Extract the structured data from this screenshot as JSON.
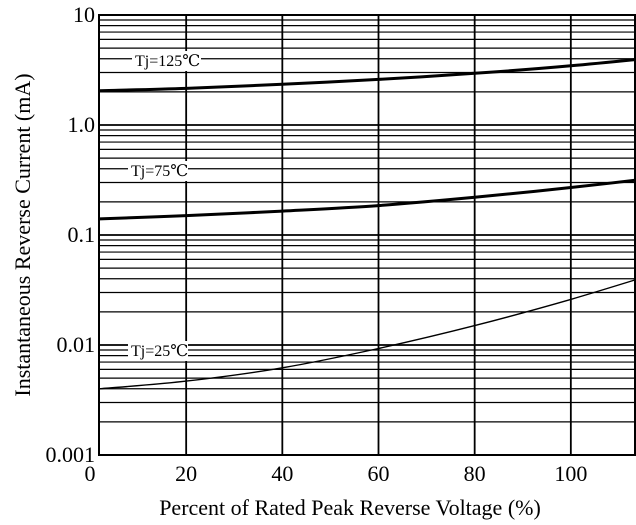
{
  "chart_data": {
    "type": "line",
    "xlabel": "Percent of Rated Peak Reverse Voltage (%)",
    "ylabel": "Instantaneous Reverse Current (mA)",
    "x_ticks": [
      0,
      20,
      40,
      60,
      80,
      100
    ],
    "x_tick_labels": [
      "0",
      "20",
      "40",
      "60",
      "80",
      "100"
    ],
    "xlim": [
      0,
      120
    ],
    "y_scale": "log",
    "y_ticks": [
      0.001,
      0.01,
      0.1,
      1.0,
      10
    ],
    "y_tick_labels": [
      "0.001",
      "0.01",
      "0.1",
      "1.0",
      "10"
    ],
    "ylim": [
      0.001,
      10
    ],
    "grid": true,
    "series": [
      {
        "name": "Tj=125℃",
        "x": [
          2,
          20,
          40,
          60,
          80,
          100,
          120
        ],
        "y": [
          2.05,
          2.15,
          2.35,
          2.6,
          2.95,
          3.45,
          4.2
        ]
      },
      {
        "name": "Tj=75℃",
        "x": [
          2,
          20,
          40,
          60,
          80,
          100,
          120
        ],
        "y": [
          0.14,
          0.15,
          0.165,
          0.185,
          0.22,
          0.27,
          0.34
        ]
      },
      {
        "name": "Tj=25℃",
        "x": [
          2,
          20,
          40,
          60,
          80,
          100,
          120
        ],
        "y": [
          0.004,
          0.0047,
          0.0062,
          0.0093,
          0.015,
          0.026,
          0.048
        ]
      }
    ]
  }
}
